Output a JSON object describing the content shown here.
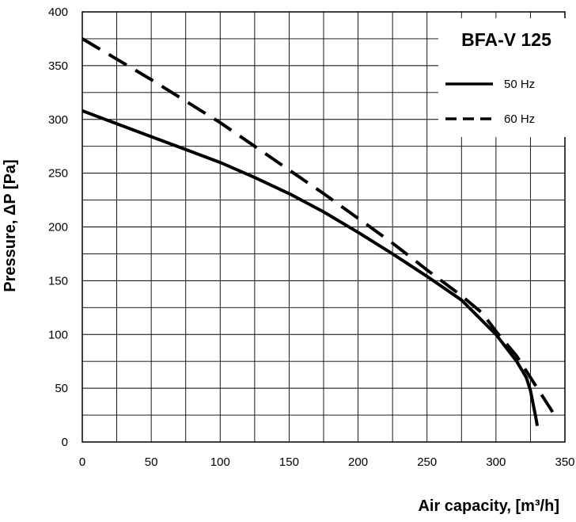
{
  "chart_data": {
    "type": "line",
    "title": "BFA-V 125",
    "xlabel": "Air capacity, [m³/h]",
    "ylabel": "Pressure, ΔP [Pa]",
    "xlim": [
      0,
      350
    ],
    "ylim": [
      0,
      400
    ],
    "xticks": [
      0,
      50,
      100,
      150,
      200,
      250,
      300,
      350
    ],
    "yticks": [
      0,
      50,
      100,
      150,
      200,
      250,
      300,
      350,
      400
    ],
    "grid": true,
    "legend_position": "top-right",
    "series": [
      {
        "name": "50 Hz",
        "style": "solid",
        "color": "#000000",
        "points": [
          [
            0,
            308
          ],
          [
            25,
            296
          ],
          [
            50,
            284
          ],
          [
            75,
            272
          ],
          [
            100,
            260
          ],
          [
            125,
            246
          ],
          [
            150,
            231
          ],
          [
            175,
            214
          ],
          [
            200,
            195
          ],
          [
            225,
            175
          ],
          [
            250,
            154
          ],
          [
            275,
            132
          ],
          [
            300,
            100
          ],
          [
            315,
            75
          ],
          [
            322,
            60
          ],
          [
            325,
            48
          ],
          [
            327,
            35
          ],
          [
            329,
            22
          ],
          [
            330,
            15
          ]
        ]
      },
      {
        "name": "60 Hz",
        "style": "dashed",
        "color": "#000000",
        "points": [
          [
            0,
            375
          ],
          [
            25,
            356
          ],
          [
            50,
            337
          ],
          [
            75,
            317
          ],
          [
            100,
            297
          ],
          [
            125,
            275
          ],
          [
            150,
            253
          ],
          [
            175,
            231
          ],
          [
            200,
            208
          ],
          [
            225,
            185
          ],
          [
            250,
            160
          ],
          [
            275,
            136
          ],
          [
            290,
            120
          ],
          [
            300,
            103
          ],
          [
            315,
            80
          ],
          [
            325,
            60
          ],
          [
            335,
            40
          ],
          [
            345,
            20
          ]
        ]
      }
    ]
  }
}
